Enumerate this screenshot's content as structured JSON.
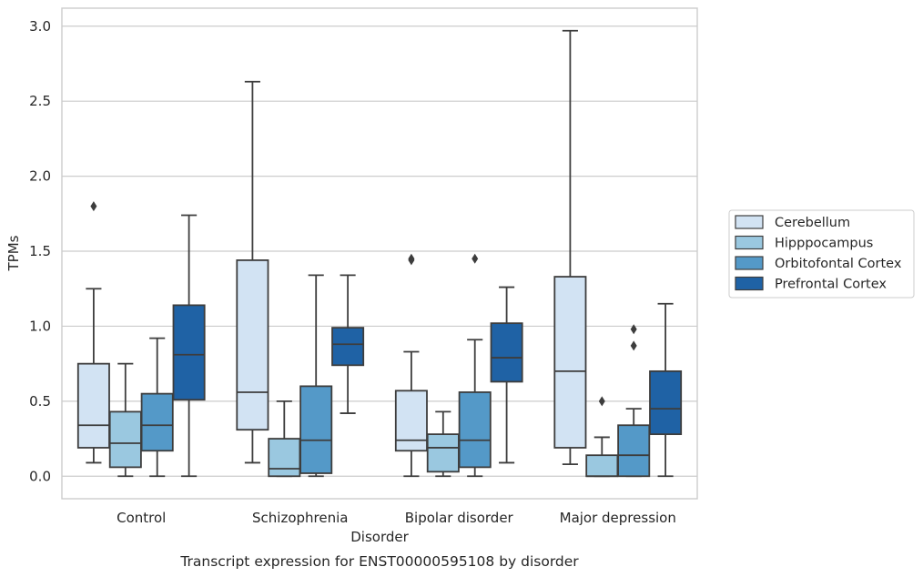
{
  "chart_data": {
    "type": "box",
    "title": "",
    "caption": "Transcript expression for ENST00000595108 by disorder",
    "xlabel": "Disorder",
    "ylabel": "TPMs",
    "ylim": [
      -0.15,
      3.12
    ],
    "yticks": [
      "0.0",
      "0.5",
      "1.0",
      "1.5",
      "2.0",
      "2.5",
      "3.0"
    ],
    "grid": "horizontal",
    "legend_position": "right",
    "categories": [
      "Control",
      "Schizophrenia",
      "Bipolar disorder",
      "Major depression"
    ],
    "series": [
      {
        "name": "Cerebellum",
        "color": "#d2e3f3",
        "boxes": [
          {
            "min": 0.09,
            "q1": 0.19,
            "median": 0.34,
            "q3": 0.75,
            "max": 1.25,
            "outliers": [
              1.8
            ]
          },
          {
            "min": 0.09,
            "q1": 0.31,
            "median": 0.56,
            "q3": 1.44,
            "max": 2.63,
            "outliers": []
          },
          {
            "min": 0.0,
            "q1": 0.17,
            "median": 0.24,
            "q3": 0.57,
            "max": 0.83,
            "outliers": [
              1.44,
              1.45
            ]
          },
          {
            "min": 0.08,
            "q1": 0.19,
            "median": 0.7,
            "q3": 1.33,
            "max": 2.97,
            "outliers": []
          }
        ]
      },
      {
        "name": "Hipppocampus",
        "color": "#9ac8e0",
        "boxes": [
          {
            "min": 0.0,
            "q1": 0.06,
            "median": 0.22,
            "q3": 0.43,
            "max": 0.75,
            "outliers": []
          },
          {
            "min": 0.0,
            "q1": 0.0,
            "median": 0.05,
            "q3": 0.25,
            "max": 0.5,
            "outliers": []
          },
          {
            "min": 0.0,
            "q1": 0.03,
            "median": 0.19,
            "q3": 0.28,
            "max": 0.43,
            "outliers": []
          },
          {
            "min": 0.0,
            "q1": 0.0,
            "median": 0.0,
            "q3": 0.14,
            "max": 0.26,
            "outliers": [
              0.5
            ]
          }
        ]
      },
      {
        "name": "Orbitofontal Cortex",
        "color": "#5499c8",
        "boxes": [
          {
            "min": 0.0,
            "q1": 0.17,
            "median": 0.34,
            "q3": 0.55,
            "max": 0.92,
            "outliers": []
          },
          {
            "min": 0.0,
            "q1": 0.02,
            "median": 0.24,
            "q3": 0.6,
            "max": 1.34,
            "outliers": []
          },
          {
            "min": 0.0,
            "q1": 0.06,
            "median": 0.24,
            "q3": 0.56,
            "max": 0.91,
            "outliers": [
              1.45
            ]
          },
          {
            "min": 0.0,
            "q1": 0.0,
            "median": 0.14,
            "q3": 0.34,
            "max": 0.45,
            "outliers": [
              0.87,
              0.98
            ]
          }
        ]
      },
      {
        "name": "Prefrontal Cortex",
        "color": "#1f62a5",
        "boxes": [
          {
            "min": 0.0,
            "q1": 0.51,
            "median": 0.81,
            "q3": 1.14,
            "max": 1.74,
            "outliers": []
          },
          {
            "min": 0.42,
            "q1": 0.74,
            "median": 0.88,
            "q3": 0.99,
            "max": 1.34,
            "outliers": []
          },
          {
            "min": 0.09,
            "q1": 0.63,
            "median": 0.79,
            "q3": 1.02,
            "max": 1.26,
            "outliers": []
          },
          {
            "min": 0.0,
            "q1": 0.28,
            "median": 0.45,
            "q3": 0.7,
            "max": 1.15,
            "outliers": []
          }
        ]
      }
    ]
  }
}
